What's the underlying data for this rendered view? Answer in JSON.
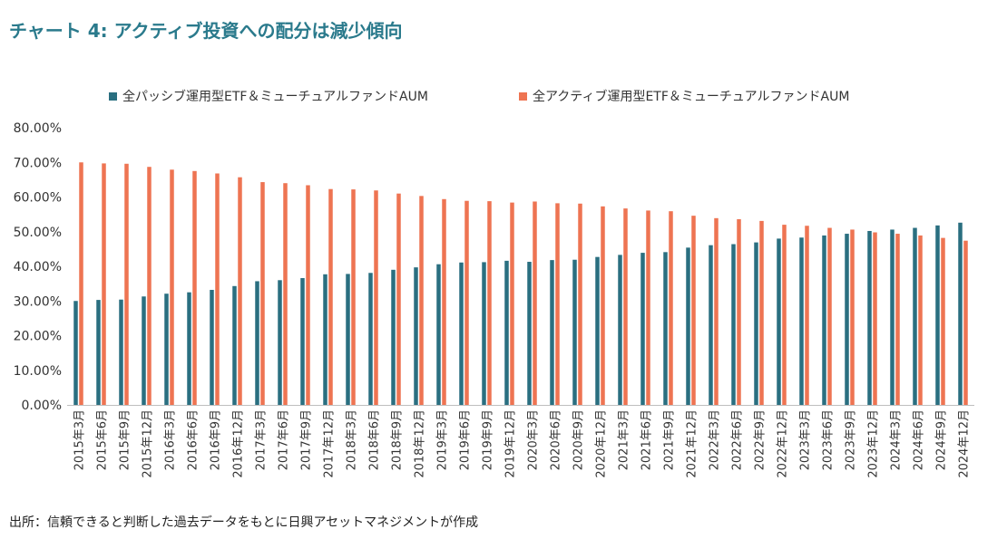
{
  "title": "チャート 4: アクティブ投資への配分は減少傾向",
  "source": "出所：信頼できると判断した過去データをもとに日興アセットマネジメントが作成",
  "colors": {
    "passive": "#2a6f80",
    "active": "#ee7452",
    "axis": "#bfbfbf",
    "text": "#333333"
  },
  "chart_data": {
    "type": "bar",
    "title": "チャート 4: アクティブ投資への配分は減少傾向",
    "xlabel": "",
    "ylabel": "",
    "ylim": [
      0,
      80
    ],
    "yticks": [
      "0.00%",
      "10.00%",
      "20.00%",
      "30.00%",
      "40.00%",
      "50.00%",
      "60.00%",
      "70.00%",
      "80.00%"
    ],
    "grid": false,
    "legend_position": "top",
    "categories": [
      "2015年3月",
      "2015年6月",
      "2015年9月",
      "2015年12月",
      "2016年3月",
      "2016年6月",
      "2016年9月",
      "2016年12月",
      "2017年3月",
      "2017年6月",
      "2017年9月",
      "2017年12月",
      "2018年3月",
      "2018年6月",
      "2018年9月",
      "2018年12月",
      "2019年3月",
      "2019年6月",
      "2019年9月",
      "2019年12月",
      "2020年3月",
      "2020年6月",
      "2020年9月",
      "2020年12月",
      "2021年3月",
      "2021年6月",
      "2021年9月",
      "2021年12月",
      "2022年3月",
      "2022年6月",
      "2022年9月",
      "2022年12月",
      "2023年3月",
      "2023年6月",
      "2023年9月",
      "2023年12月",
      "2024年3月",
      "2024年6月",
      "2024年9月",
      "2024年12月"
    ],
    "series": [
      {
        "name": "全パッシブ運用型ETF＆ミューチュアルファンドAUM",
        "color": "#2a6f80",
        "values": [
          30.0,
          30.3,
          30.4,
          31.3,
          32.1,
          32.5,
          33.2,
          34.3,
          35.7,
          36.0,
          36.6,
          37.7,
          37.8,
          38.1,
          39.0,
          39.7,
          40.6,
          41.1,
          41.2,
          41.6,
          41.3,
          41.8,
          41.9,
          42.7,
          43.3,
          43.9,
          44.1,
          45.4,
          46.1,
          46.4,
          46.9,
          48.0,
          48.3,
          48.9,
          49.4,
          50.2,
          50.6,
          51.1,
          51.8,
          52.6
        ]
      },
      {
        "name": "全アクティブ運用型ETF＆ミューチュアルファンドAUM",
        "color": "#ee7452",
        "values": [
          70.0,
          69.7,
          69.6,
          68.7,
          67.9,
          67.5,
          66.8,
          65.7,
          64.3,
          64.0,
          63.4,
          62.3,
          62.2,
          61.9,
          61.0,
          60.3,
          59.4,
          58.9,
          58.8,
          58.4,
          58.7,
          58.2,
          58.1,
          57.3,
          56.7,
          56.1,
          55.9,
          54.6,
          53.9,
          53.6,
          53.1,
          52.0,
          51.7,
          51.1,
          50.6,
          49.8,
          49.4,
          48.9,
          48.2,
          47.4
        ]
      }
    ]
  }
}
